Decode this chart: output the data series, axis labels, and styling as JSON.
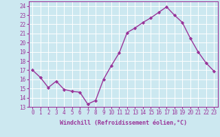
{
  "x": [
    0,
    1,
    2,
    3,
    4,
    5,
    6,
    7,
    8,
    9,
    10,
    11,
    12,
    13,
    14,
    15,
    16,
    17,
    18,
    19,
    20,
    21,
    22,
    23
  ],
  "y": [
    17,
    16.2,
    15.1,
    15.8,
    14.9,
    14.7,
    14.6,
    13.3,
    13.7,
    16.0,
    17.5,
    18.9,
    21.1,
    21.6,
    22.2,
    22.7,
    23.3,
    23.9,
    23.0,
    22.2,
    20.5,
    19.0,
    17.8,
    16.9
  ],
  "line_color": "#993399",
  "marker": "D",
  "marker_size": 2.2,
  "bg_color": "#cce8f0",
  "grid_color": "#ffffff",
  "xlabel": "Windchill (Refroidissement éolien,°C)",
  "xlim": [
    -0.5,
    23.5
  ],
  "ylim": [
    13,
    24.5
  ],
  "yticks": [
    13,
    14,
    15,
    16,
    17,
    18,
    19,
    20,
    21,
    22,
    23,
    24
  ],
  "xticks": [
    0,
    1,
    2,
    3,
    4,
    5,
    6,
    7,
    8,
    9,
    10,
    11,
    12,
    13,
    14,
    15,
    16,
    17,
    18,
    19,
    20,
    21,
    22,
    23
  ],
  "xtick_labels": [
    "0",
    "1",
    "2",
    "3",
    "4",
    "5",
    "6",
    "7",
    "8",
    "9",
    "10",
    "11",
    "12",
    "13",
    "14",
    "15",
    "16",
    "17",
    "18",
    "19",
    "20",
    "21",
    "22",
    "23"
  ],
  "ytick_labels": [
    "13",
    "14",
    "15",
    "16",
    "17",
    "18",
    "19",
    "20",
    "21",
    "22",
    "23",
    "24"
  ],
  "label_fontsize": 6.0,
  "tick_fontsize": 5.5,
  "linewidth": 1.0
}
